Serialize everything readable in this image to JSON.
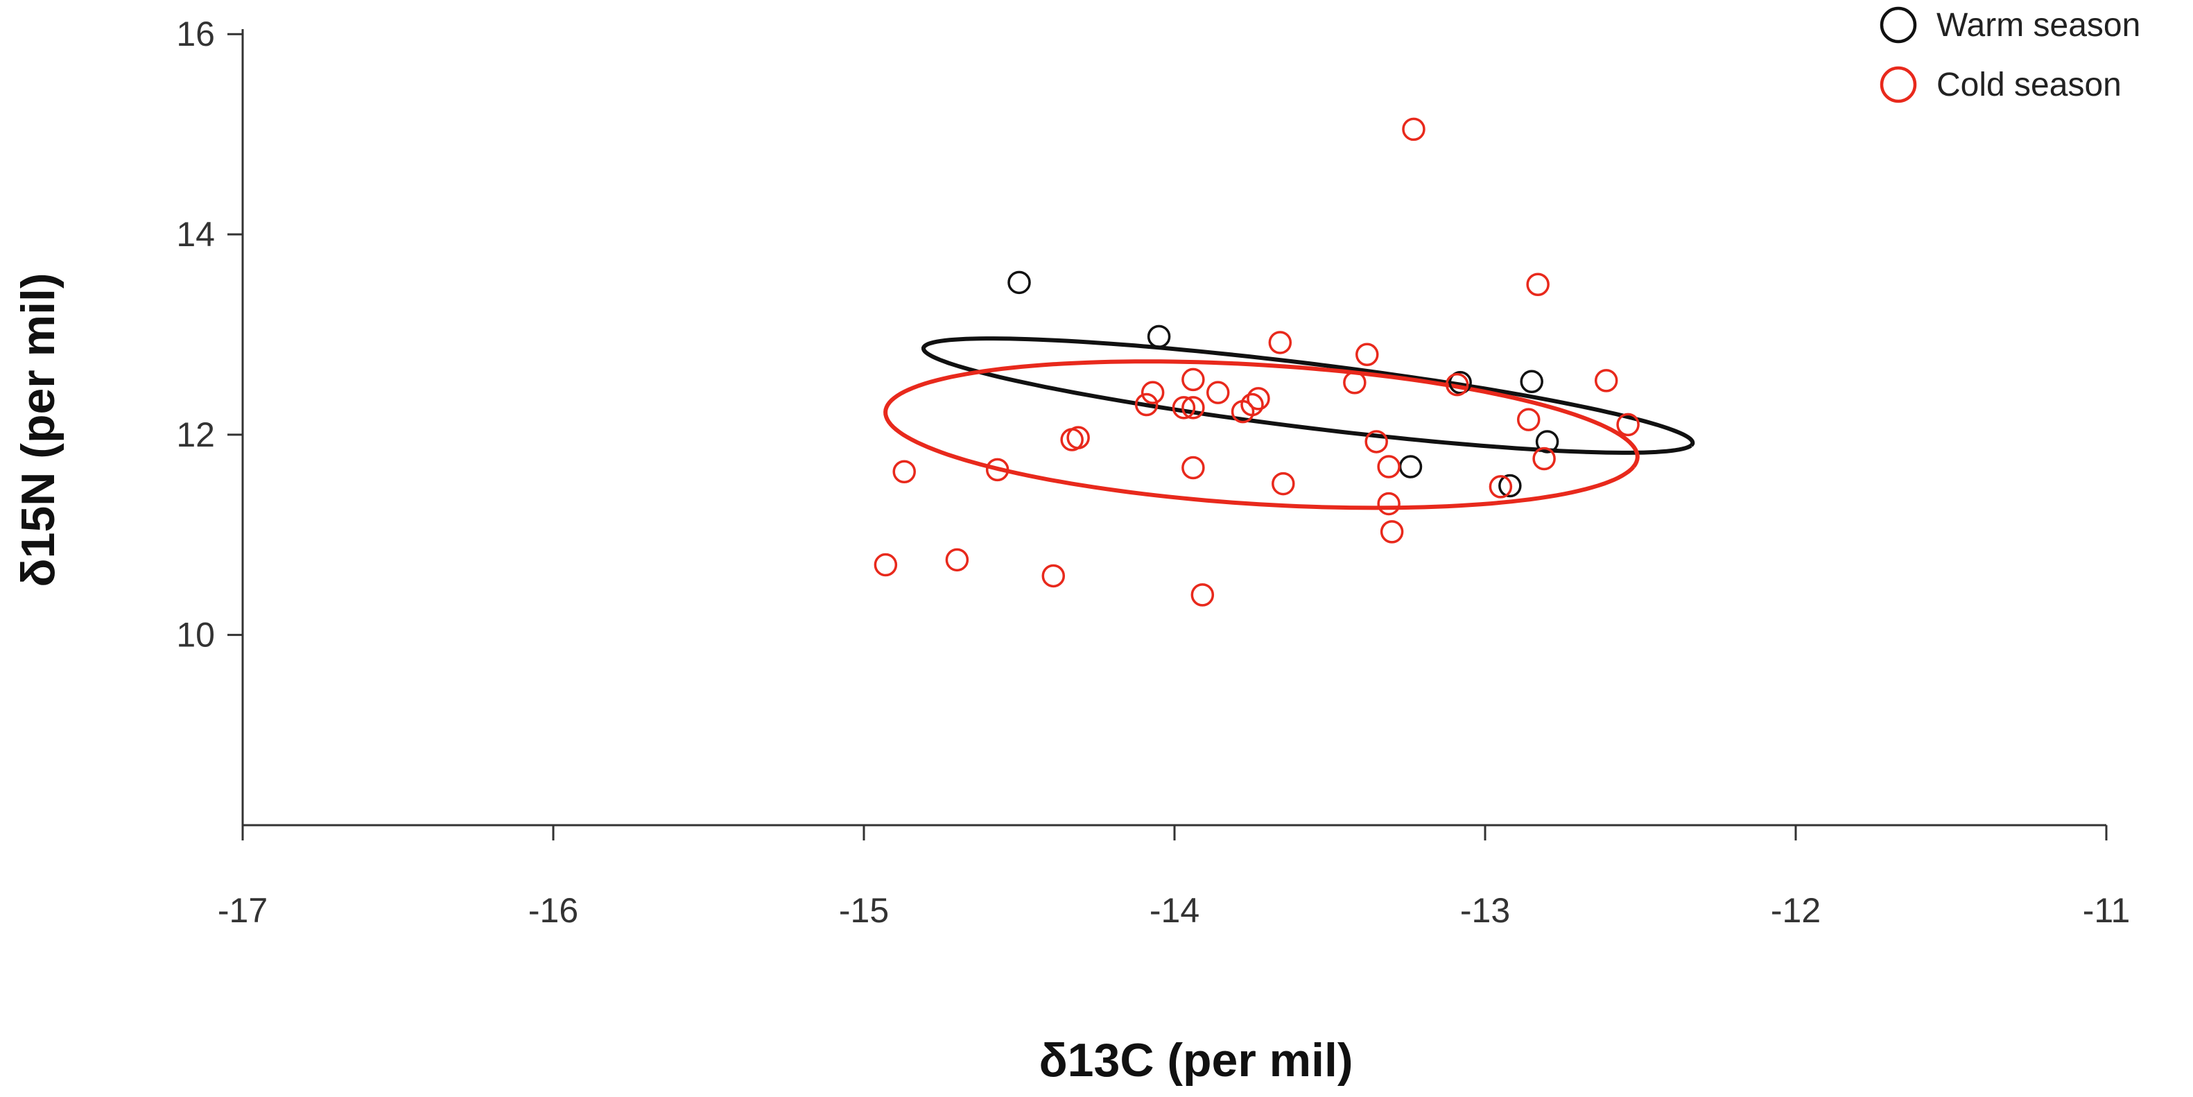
{
  "chart_data": {
    "type": "scatter",
    "title": "",
    "xlabel": "δ13C (per mil)",
    "ylabel": "δ15N (per mil)",
    "x_axis": {
      "min": -17,
      "max": -11,
      "ticks": [
        -17,
        -16,
        -15,
        -14,
        -13,
        -12,
        -11
      ]
    },
    "y_axis": {
      "min": 8.1,
      "max": 16.05,
      "ticks": [
        10,
        12,
        14,
        16
      ]
    },
    "legend": {
      "position": "top-right"
    },
    "grid": false,
    "series": [
      {
        "name": "Warm season",
        "color": "#111111",
        "points": [
          [
            -14.5,
            13.52
          ],
          [
            -14.05,
            12.98
          ],
          [
            -13.08,
            12.52
          ],
          [
            -12.85,
            12.53
          ],
          [
            -12.8,
            11.93
          ],
          [
            -12.92,
            11.49
          ],
          [
            -13.24,
            11.68
          ]
        ],
        "ellipse": {
          "cx": -13.57,
          "cy": 12.39,
          "rx": 1.33,
          "ry": 0.3,
          "angle": -22
        }
      },
      {
        "name": "Cold season",
        "color": "#e8291c",
        "points": [
          [
            -13.23,
            15.05
          ],
          [
            -12.83,
            13.5
          ],
          [
            -13.66,
            12.92
          ],
          [
            -13.38,
            12.8
          ],
          [
            -13.42,
            12.52
          ],
          [
            -13.09,
            12.5
          ],
          [
            -12.61,
            12.54
          ],
          [
            -12.54,
            12.1
          ],
          [
            -12.86,
            12.15
          ],
          [
            -12.81,
            11.76
          ],
          [
            -12.95,
            11.48
          ],
          [
            -13.94,
            12.55
          ],
          [
            -14.07,
            12.42
          ],
          [
            -14.09,
            12.3
          ],
          [
            -13.97,
            12.27
          ],
          [
            -13.94,
            12.27
          ],
          [
            -13.86,
            12.42
          ],
          [
            -13.73,
            12.36
          ],
          [
            -13.75,
            12.3
          ],
          [
            -13.78,
            12.23
          ],
          [
            -14.31,
            11.97
          ],
          [
            -14.33,
            11.95
          ],
          [
            -13.35,
            11.93
          ],
          [
            -13.31,
            11.68
          ],
          [
            -13.94,
            11.67
          ],
          [
            -13.65,
            11.51
          ],
          [
            -13.31,
            11.31
          ],
          [
            -13.3,
            11.03
          ],
          [
            -14.87,
            11.63
          ],
          [
            -14.57,
            11.65
          ],
          [
            -14.93,
            10.7
          ],
          [
            -14.7,
            10.75
          ],
          [
            -14.39,
            10.59
          ],
          [
            -13.91,
            10.4
          ]
        ],
        "ellipse": {
          "cx": -13.72,
          "cy": 12.0,
          "rx": 1.24,
          "ry": 0.68,
          "angle": -15
        }
      }
    ]
  }
}
